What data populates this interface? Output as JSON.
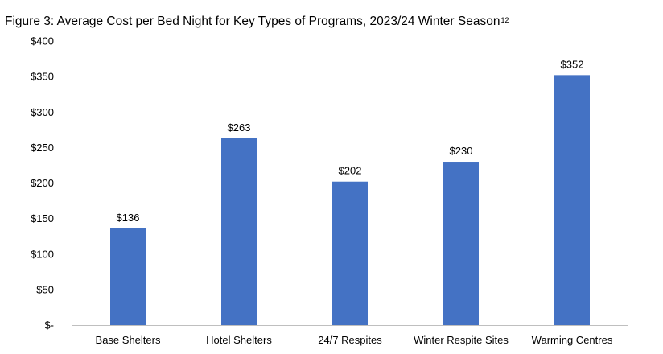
{
  "chart_data": {
    "type": "bar",
    "title": "Figure 3: Average Cost per Bed Night for Key Types of Programs, 2023/24 Winter Season",
    "title_footnote": "12",
    "xlabel": "",
    "ylabel": "",
    "categories": [
      "Base Shelters",
      "Hotel Shelters",
      "24/7 Respites",
      "Winter Respite Sites",
      "Warming Centres"
    ],
    "values": [
      136,
      263,
      202,
      230,
      352
    ],
    "data_labels": [
      "$136",
      "$263",
      "$202",
      "$230",
      "$352"
    ],
    "ylim": [
      0,
      400
    ],
    "yticks": [
      0,
      50,
      100,
      150,
      200,
      250,
      300,
      350,
      400
    ],
    "ytick_labels": [
      "$-",
      "$50",
      "$100",
      "$150",
      "$200",
      "$250",
      "$300",
      "$350",
      "$400"
    ],
    "grid": false,
    "legend": "none",
    "bar_color": "#4472C4"
  }
}
